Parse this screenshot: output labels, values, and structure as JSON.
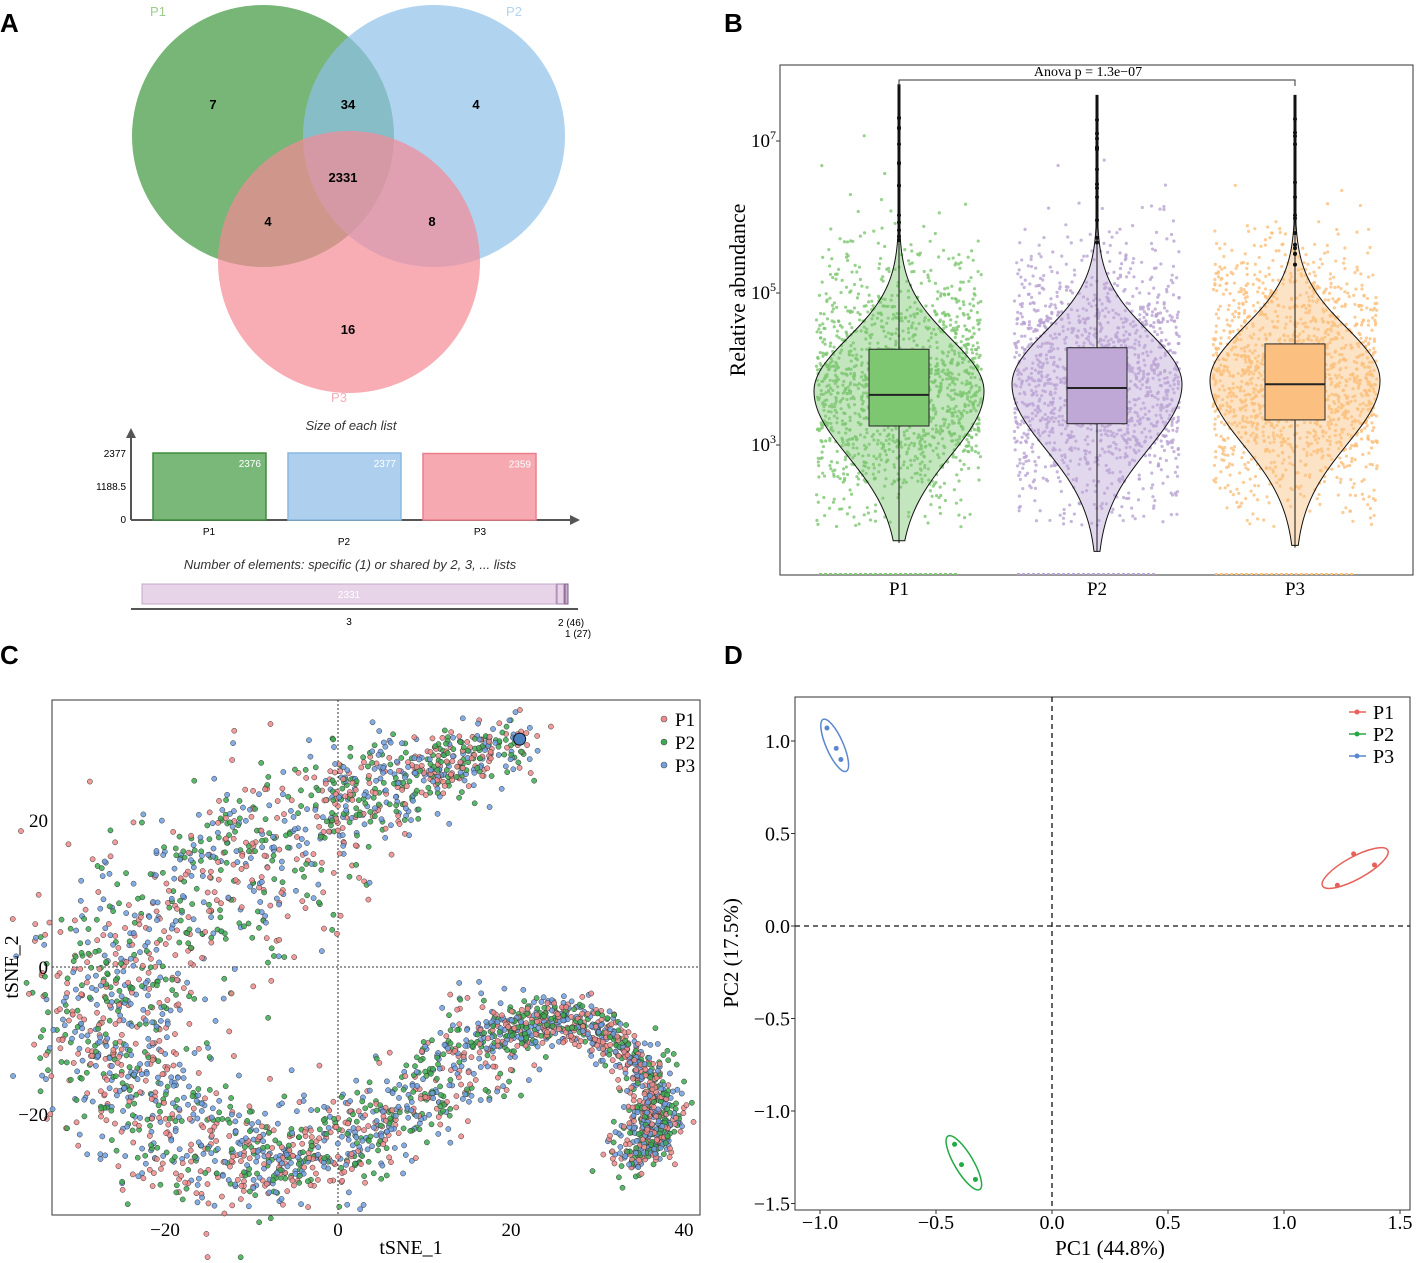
{
  "panel_labels": [
    "A",
    "B",
    "C",
    "D"
  ],
  "chart_data": [
    {
      "type": "venn",
      "sets": [
        {
          "name": "P1",
          "color": "#4a9e4a"
        },
        {
          "name": "P2",
          "color": "#8ec1ea"
        },
        {
          "name": "P3",
          "color": "#f58a96"
        }
      ],
      "regions": {
        "P1_only": "7",
        "P1_P2": "34",
        "P2_only": "4",
        "P1_P2_P3": "2331",
        "P1_P3": "4",
        "P2_P3": "8",
        "P3_only": "16"
      },
      "size_chart": {
        "title": "Size of each list",
        "yticks": [
          "2377",
          "1188.5",
          "0"
        ],
        "categories": [
          "P1",
          "P2",
          "P3"
        ],
        "values": [
          2376,
          2377,
          2359
        ],
        "labels": [
          "2376",
          "2377",
          "2359"
        ]
      },
      "shared_chart": {
        "title": "Number of elements: specific (1) or shared by 2, 3, ... lists",
        "values": [
          2331,
          46,
          27
        ],
        "bar_label": "2331",
        "ticks": [
          "3",
          "2 (46)",
          "1 (27)"
        ]
      }
    },
    {
      "type": "violin",
      "ylabel": "Relative abundance",
      "yscale": "log",
      "yticks": [
        {
          "base": "10",
          "exp": "3"
        },
        {
          "base": "10",
          "exp": "5"
        },
        {
          "base": "10",
          "exp": "7"
        }
      ],
      "categories": [
        "P1",
        "P2",
        "P3"
      ],
      "colors": [
        "#7dc771",
        "#bfa8d6",
        "#fbc07f"
      ],
      "annotation": "Anova  p = 1.3e−07",
      "box_log10": [
        {
          "min": 1.71,
          "q1": 3.25,
          "median": 3.66,
          "q3": 4.26,
          "max": 7.74
        },
        {
          "min": 1.6,
          "q1": 3.28,
          "median": 3.75,
          "q3": 4.28,
          "max": 7.6
        },
        {
          "min": 1.65,
          "q1": 3.33,
          "median": 3.8,
          "q3": 4.33,
          "max": 7.6
        }
      ]
    },
    {
      "type": "scatter",
      "xlabel": "tSNE_1",
      "ylabel": "tSNE_2",
      "xticks": [
        "−20",
        "0",
        "20",
        "40"
      ],
      "yticks": [
        "20",
        "0",
        "−20"
      ],
      "xlim": [
        -33,
        42
      ],
      "ylim": [
        -34,
        36
      ],
      "series": [
        {
          "name": "P1",
          "color": "#f08a8a"
        },
        {
          "name": "P2",
          "color": "#3caa50"
        },
        {
          "name": "P3",
          "color": "#6f9fe0"
        }
      ],
      "manifold_centerline": [
        [
          21,
          31
        ],
        [
          10,
          27
        ],
        [
          0,
          22
        ],
        [
          -10,
          15
        ],
        [
          -20,
          7
        ],
        [
          -27,
          -2
        ],
        [
          -26,
          -12
        ],
        [
          -20,
          -22
        ],
        [
          -10,
          -27
        ],
        [
          0,
          -25
        ],
        [
          10,
          -17
        ],
        [
          18,
          -9
        ],
        [
          25,
          -7
        ],
        [
          31,
          -9
        ],
        [
          36,
          -15
        ],
        [
          37,
          -22
        ],
        [
          34,
          -26
        ]
      ],
      "legend": "top-right"
    },
    {
      "type": "scatter",
      "xlabel": "PC1 (44.8%)",
      "ylabel": "PC2 (17.5%)",
      "xticks": [
        "−1.0",
        "−0.5",
        "0.0",
        "0.5",
        "1.0",
        "1.5"
      ],
      "yticks": [
        "1.0",
        "0.5",
        "0.0",
        "−0.5",
        "−1.0",
        "−1.5"
      ],
      "xlim": [
        -1.13,
        1.5
      ],
      "ylim": [
        -1.55,
        1.23
      ],
      "series": [
        {
          "name": "P1",
          "color": "#e8605a",
          "points": [
            [
              1.23,
              0.22
            ],
            [
              1.3,
              0.39
            ],
            [
              1.39,
              0.33
            ]
          ]
        },
        {
          "name": "P2",
          "color": "#22aa44",
          "points": [
            [
              -0.42,
              -1.18
            ],
            [
              -0.39,
              -1.29
            ],
            [
              -0.33,
              -1.37
            ]
          ]
        },
        {
          "name": "P3",
          "color": "#5b86d0",
          "points": [
            [
              -0.97,
              1.07
            ],
            [
              -0.93,
              0.96
            ],
            [
              -0.91,
              0.9
            ]
          ]
        }
      ],
      "legend": "top-right"
    }
  ]
}
